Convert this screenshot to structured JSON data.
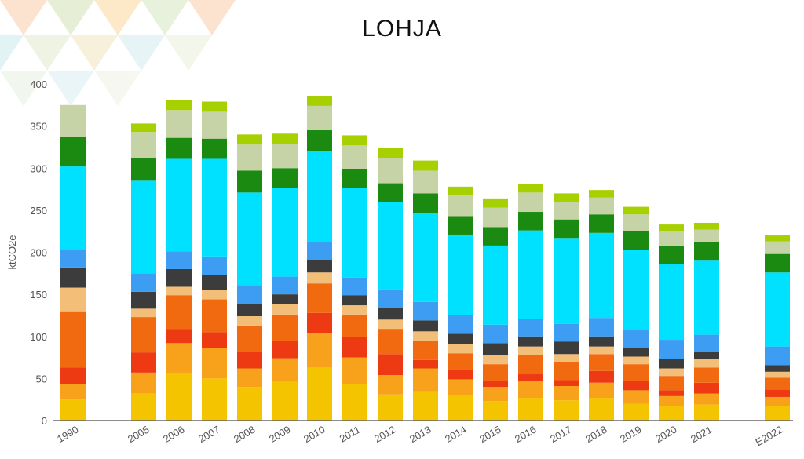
{
  "chart_data": {
    "type": "bar",
    "stacked": true,
    "title": "LOHJA",
    "xlabel": "",
    "ylabel": "ktCO2e",
    "ylim": [
      0,
      400
    ],
    "yticks": [
      0,
      50,
      100,
      150,
      200,
      250,
      300,
      350,
      400
    ],
    "grid": false,
    "legend": "none",
    "categories": [
      "1990",
      "2005",
      "2006",
      "2007",
      "2008",
      "2009",
      "2010",
      "2011",
      "2012",
      "2013",
      "2014",
      "2015",
      "2016",
      "2017",
      "2018",
      "2019",
      "2020",
      "2021",
      "E2022"
    ],
    "series": [
      {
        "color": "#f5c400",
        "values": [
          25,
          32,
          56,
          50,
          40,
          46,
          63,
          43,
          31,
          35,
          30,
          23,
          27,
          24,
          27,
          20,
          17,
          19,
          17
        ]
      },
      {
        "color": "#f7a21a",
        "values": [
          18,
          25,
          36,
          36,
          22,
          28,
          41,
          32,
          23,
          27,
          19,
          17,
          20,
          17,
          18,
          16,
          12,
          13,
          11
        ]
      },
      {
        "color": "#ee3a12",
        "values": [
          20,
          24,
          17,
          19,
          20,
          21,
          24,
          24,
          25,
          10,
          11,
          7,
          8,
          7,
          14,
          11,
          7,
          13,
          9
        ]
      },
      {
        "color": "#f26a10",
        "values": [
          66,
          42,
          40,
          39,
          31,
          31,
          35,
          27,
          30,
          23,
          20,
          20,
          23,
          21,
          20,
          20,
          17,
          18,
          14
        ]
      },
      {
        "color": "#f3be78",
        "values": [
          29,
          10,
          10,
          11,
          11,
          12,
          13,
          11,
          11,
          11,
          11,
          11,
          10,
          10,
          9,
          9,
          9,
          10,
          7
        ]
      },
      {
        "color": "#3c3c3c",
        "values": [
          24,
          20,
          21,
          18,
          14,
          12,
          15,
          12,
          14,
          13,
          12,
          14,
          12,
          15,
          12,
          11,
          11,
          9,
          8
        ]
      },
      {
        "color": "#3d9df2",
        "values": [
          21,
          22,
          21,
          22,
          23,
          21,
          21,
          21,
          22,
          22,
          22,
          22,
          21,
          21,
          22,
          21,
          23,
          20,
          22
        ]
      },
      {
        "color": "#00e0ff",
        "values": [
          99,
          110,
          110,
          116,
          110,
          105,
          108,
          106,
          104,
          106,
          96,
          94,
          105,
          102,
          101,
          95,
          90,
          88,
          88
        ]
      },
      {
        "color": "#1a8a10",
        "values": [
          35,
          27,
          25,
          24,
          26,
          24,
          25,
          23,
          22,
          23,
          22,
          22,
          22,
          22,
          22,
          22,
          22,
          22,
          22
        ]
      },
      {
        "color": "#c5d3a6",
        "values": [
          38,
          31,
          33,
          32,
          31,
          29,
          29,
          28,
          30,
          27,
          25,
          23,
          23,
          21,
          20,
          20,
          17,
          15,
          15
        ]
      },
      {
        "color": "#a6d000",
        "values": [
          0,
          10,
          12,
          12,
          12,
          12,
          12,
          12,
          12,
          12,
          10,
          11,
          10,
          10,
          9,
          9,
          8,
          8,
          7
        ]
      }
    ]
  }
}
